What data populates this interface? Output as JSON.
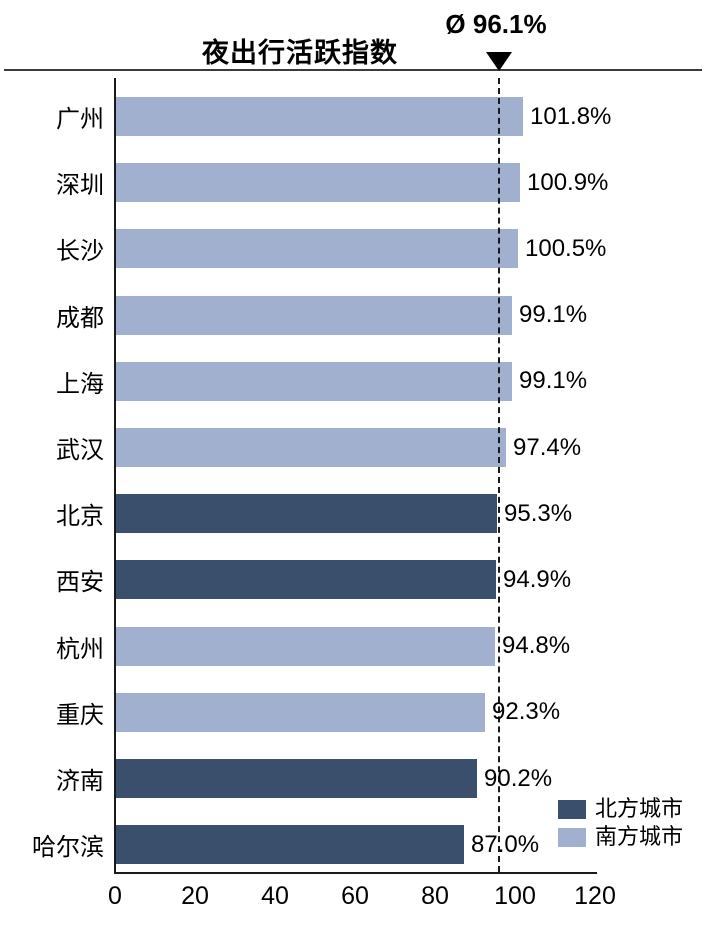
{
  "chart_data": {
    "type": "bar",
    "orientation": "horizontal",
    "title": "夜出行活跃指数",
    "average": {
      "label": "Ø 96.1%",
      "value": 96.1
    },
    "xlim": [
      0,
      120
    ],
    "xticks": [
      "0",
      "20",
      "40",
      "60",
      "80",
      "100",
      "120"
    ],
    "grid": false,
    "legend_position": "bottom-right",
    "rows": [
      {
        "city": "广州",
        "value": 101.8,
        "label": "101.8%",
        "group": "south"
      },
      {
        "city": "深圳",
        "value": 100.9,
        "label": "100.9%",
        "group": "south"
      },
      {
        "city": "长沙",
        "value": 100.5,
        "label": "100.5%",
        "group": "south"
      },
      {
        "city": "成都",
        "value": 99.1,
        "label": "99.1%",
        "group": "south"
      },
      {
        "city": "上海",
        "value": 99.1,
        "label": "99.1%",
        "group": "south"
      },
      {
        "city": "武汉",
        "value": 97.4,
        "label": "97.4%",
        "group": "south"
      },
      {
        "city": "北京",
        "value": 95.3,
        "label": "95.3%",
        "group": "north"
      },
      {
        "city": "西安",
        "value": 94.9,
        "label": "94.9%",
        "group": "north"
      },
      {
        "city": "杭州",
        "value": 94.8,
        "label": "94.8%",
        "group": "south"
      },
      {
        "city": "重庆",
        "value": 92.3,
        "label": "92.3%",
        "group": "south"
      },
      {
        "city": "济南",
        "value": 90.2,
        "label": "90.2%",
        "group": "north"
      },
      {
        "city": "哈尔滨",
        "value": 87.0,
        "label": "87.0%",
        "group": "north"
      }
    ],
    "legend": [
      {
        "label": "北方城市",
        "group": "north",
        "color": "#3A4F6C"
      },
      {
        "label": "南方城市",
        "group": "south",
        "color": "#A0B0CE"
      }
    ],
    "colors": {
      "north": "#3A4F6C",
      "south": "#A0B0CE"
    }
  }
}
